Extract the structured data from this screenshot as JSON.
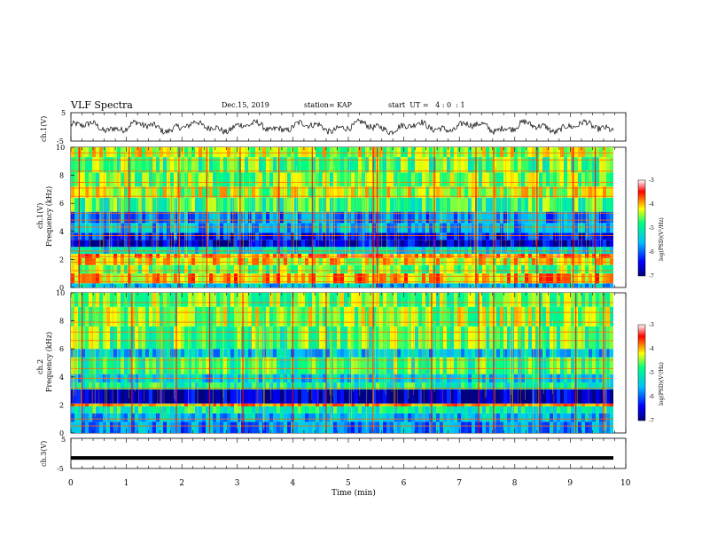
{
  "header": {
    "title": "VLF Spectra",
    "date": "Dec.15, 2019",
    "station": "station= KAP",
    "start": "start  UT =   4 : 0  : 1"
  },
  "colors": {
    "scale": [
      "#000080",
      "#0000ff",
      "#00c0ff",
      "#00ff80",
      "#ffff00",
      "#ff0000",
      "#ffffff"
    ],
    "trace": "#000000"
  },
  "chart_data": [
    {
      "type": "line",
      "panel": "ch1-waveform",
      "ylabel": "ch.1(V)",
      "xlim": [
        0,
        10
      ],
      "ylim": [
        -5,
        5
      ],
      "yticks": [
        "5",
        "-5"
      ],
      "series": [
        {
          "approx_amplitude": "-2 to 2 V, noisy oscillation",
          "mean": 0
        }
      ]
    },
    {
      "type": "heatmap",
      "panel": "ch1-spectrogram",
      "ylabel": "ch.1\nFrequency (kHz)",
      "xlim": [
        0,
        10
      ],
      "ylim": [
        0,
        10
      ],
      "yticks": [
        "0",
        "2",
        "4",
        "6",
        "8",
        "10"
      ],
      "colorbar": {
        "label": "log(PSD)(V²/Hz)",
        "range": [
          -7,
          -3
        ],
        "ticks": [
          "-3",
          "-4",
          "-5",
          "-6",
          "-7"
        ]
      },
      "bands": [
        {
          "f": [
            0.0,
            0.3
          ],
          "level": -5.5
        },
        {
          "f": [
            0.3,
            1.0
          ],
          "level": -4.0
        },
        {
          "f": [
            1.0,
            1.6
          ],
          "level": -4.6
        },
        {
          "f": [
            1.6,
            2.1
          ],
          "level": -4.2
        },
        {
          "f": [
            2.1,
            2.4
          ],
          "level": -3.8
        },
        {
          "f": [
            2.4,
            2.9
          ],
          "level": -5.3
        },
        {
          "f": [
            2.9,
            3.4
          ],
          "level": -6.6
        },
        {
          "f": [
            3.4,
            3.9
          ],
          "level": -6.3
        },
        {
          "f": [
            3.9,
            4.6
          ],
          "level": -5.6
        },
        {
          "f": [
            4.6,
            5.4
          ],
          "level": -5.8
        },
        {
          "f": [
            5.4,
            6.4
          ],
          "level": -4.8
        },
        {
          "f": [
            6.4,
            7.2
          ],
          "level": -4.4
        },
        {
          "f": [
            7.2,
            8.2
          ],
          "level": -4.6
        },
        {
          "f": [
            8.2,
            9.3
          ],
          "level": -4.7
        },
        {
          "f": [
            9.3,
            10.0
          ],
          "level": -4.4
        }
      ],
      "lines_khz": [
        0.4,
        0.8,
        1.2,
        1.8,
        2.2,
        2.6,
        3.7,
        4.3,
        4.8,
        5.3,
        6.5,
        7.1,
        7.5,
        8.3,
        9.1,
        9.6
      ],
      "spike_times_min": [
        0.15,
        1.05,
        1.95,
        2.45,
        3.05,
        3.75,
        4.35,
        5.45,
        5.52,
        6.55,
        7.3,
        7.62,
        8.4,
        9.05,
        9.45
      ]
    },
    {
      "type": "heatmap",
      "panel": "ch2-spectrogram",
      "ylabel": "ch.2\nFrequency (kHz)",
      "xlim": [
        0,
        10
      ],
      "ylim": [
        0,
        10
      ],
      "yticks": [
        "0",
        "2",
        "4",
        "6",
        "8",
        "10"
      ],
      "colorbar": {
        "label": "log(PSD)(V²/Hz)",
        "range": [
          -7,
          -3
        ],
        "ticks": [
          "-3",
          "-4",
          "-5",
          "-6",
          "-7"
        ]
      },
      "bands": [
        {
          "f": [
            0.0,
            0.8
          ],
          "level": -5.8
        },
        {
          "f": [
            0.8,
            1.4
          ],
          "level": -5.6
        },
        {
          "f": [
            1.4,
            1.9
          ],
          "level": -5.0
        },
        {
          "f": [
            1.9,
            2.1
          ],
          "level": -4.0
        },
        {
          "f": [
            2.1,
            3.1
          ],
          "level": -6.7
        },
        {
          "f": [
            3.1,
            3.6
          ],
          "level": -5.0
        },
        {
          "f": [
            3.6,
            4.2
          ],
          "level": -5.4
        },
        {
          "f": [
            4.2,
            5.4
          ],
          "level": -4.8
        },
        {
          "f": [
            5.4,
            6.0
          ],
          "level": -5.5
        },
        {
          "f": [
            6.0,
            7.6
          ],
          "level": -4.7
        },
        {
          "f": [
            7.6,
            9.0
          ],
          "level": -4.5
        },
        {
          "f": [
            9.0,
            10.0
          ],
          "level": -4.6
        }
      ],
      "lines_khz": [
        0.5,
        1.0,
        2.0,
        3.2,
        3.9,
        4.6,
        5.2,
        6.6,
        7.2,
        7.9,
        8.6,
        9.3
      ],
      "spike_times_min": [
        0.2,
        1.1,
        1.9,
        2.5,
        3.1,
        4.0,
        4.6,
        5.45,
        6.5,
        7.35,
        7.62,
        8.45,
        9.1,
        9.6
      ]
    },
    {
      "type": "line",
      "panel": "ch3-waveform",
      "ylabel": "ch.3(V)",
      "xlim": [
        0,
        10
      ],
      "ylim": [
        -5,
        5
      ],
      "yticks": [
        "5",
        "0",
        "-5"
      ],
      "series": [
        {
          "constant_value": -1.5
        }
      ]
    }
  ],
  "xaxis": {
    "label": "Time (min)",
    "ticks": [
      "0",
      "1",
      "2",
      "3",
      "4",
      "5",
      "6",
      "7",
      "8",
      "9",
      "10"
    ]
  }
}
